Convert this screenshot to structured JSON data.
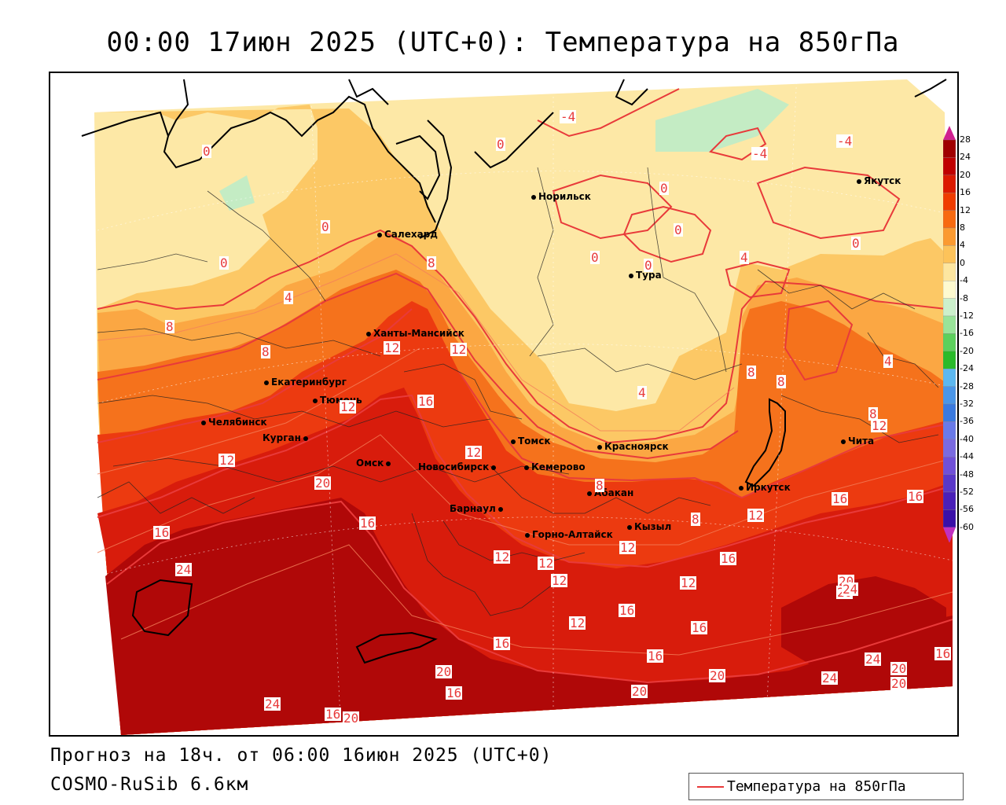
{
  "header": {
    "title": "00:00 17июн 2025 (UTC+0): Температура на 850гПа"
  },
  "footer": {
    "forecast": "Прогноз на 18ч. от 06:00 16июн 2025 (UTC+0)",
    "model": "COSMO-RuSib 6.6км"
  },
  "legend": {
    "label": "Температура на 850гПа",
    "line_color": "#e83a3a"
  },
  "cities": [
    {
      "name": "Салехард"
    },
    {
      "name": "Норильск"
    },
    {
      "name": "Якутск"
    },
    {
      "name": "Тура"
    },
    {
      "name": "Ханты-Мансийск"
    },
    {
      "name": "Екатеринбург"
    },
    {
      "name": "Тюмень"
    },
    {
      "name": "Челябинск"
    },
    {
      "name": "Курган"
    },
    {
      "name": "Омск"
    },
    {
      "name": "Новосибирск"
    },
    {
      "name": "Томск"
    },
    {
      "name": "Кемерово"
    },
    {
      "name": "Красноярск"
    },
    {
      "name": "Абакан"
    },
    {
      "name": "Барнаул"
    },
    {
      "name": "Горно-Алтайск"
    },
    {
      "name": "Кызыл"
    },
    {
      "name": "Иркутск"
    },
    {
      "name": "Чита"
    }
  ],
  "isotherm_labels": [
    "0",
    "0",
    "0",
    "0",
    "0",
    "0",
    "0",
    "0",
    "0",
    "-4",
    "-4",
    "-4",
    "4",
    "4",
    "4",
    "4",
    "8",
    "8",
    "8",
    "8",
    "8",
    "8",
    "8",
    "8",
    "12",
    "12",
    "12",
    "12",
    "12",
    "12",
    "12",
    "12",
    "12",
    "12",
    "12",
    "12",
    "12",
    "16",
    "16",
    "16",
    "16",
    "16",
    "16",
    "16",
    "16",
    "16",
    "16",
    "16",
    "16",
    "16",
    "20",
    "20",
    "20",
    "20",
    "20",
    "20",
    "20",
    "20",
    "20",
    "24",
    "24",
    "24",
    "24",
    "24"
  ],
  "colorbar": {
    "ticks": [
      "28",
      "24",
      "20",
      "16",
      "12",
      "8",
      "4",
      "0",
      "-4",
      "-8",
      "-12",
      "-16",
      "-20",
      "-24",
      "-28",
      "-32",
      "-36",
      "-40",
      "-44",
      "-48",
      "-52",
      "-56",
      "-60"
    ],
    "colors": [
      "#a00000",
      "#c00000",
      "#dc1a00",
      "#f03c00",
      "#f86a10",
      "#fb9a30",
      "#fdc35a",
      "#fde6a0",
      "#fefad0",
      "#ccf0cc",
      "#99e499",
      "#5cd05c",
      "#2aba2a",
      "#5cb8f0",
      "#4a96e8",
      "#3a7ae0",
      "#6a7ae8",
      "#7a6ae0",
      "#7050d8",
      "#5a38c8",
      "#4a20b8",
      "#3a10a8",
      "#c030c0"
    ]
  },
  "colors": {
    "deep_red": "#b00808",
    "red": "#d81c0c",
    "red_orange": "#ec3a10",
    "orange": "#f5721c",
    "light_orange": "#fba743",
    "yellow_orange": "#fcc865",
    "pale_yellow": "#fde8a6",
    "light_green": "#c4ecc4"
  }
}
